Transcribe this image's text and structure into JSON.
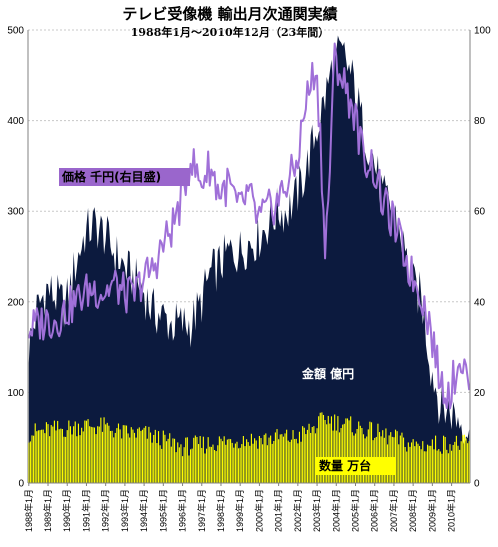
{
  "chart_data": {
    "type": "area",
    "title": "テレビ受像機 輸出月次通関実績",
    "subtitle": "1988年1月～2010年12月（23年間）",
    "x_start": "1988-01",
    "x_end": "2010-12",
    "x_tick_labels": [
      "1988年1月",
      "1989年1月",
      "1990年1月",
      "1991年1月",
      "1992年1月",
      "1993年1月",
      "1994年1月",
      "1995年1月",
      "1996年1月",
      "1997年1月",
      "1998年1月",
      "1999年1月",
      "2000年1月",
      "2001年1月",
      "2002年1月",
      "2003年1月",
      "2004年1月",
      "2005年1月",
      "2006年1月",
      "2007年1月",
      "2008年1月",
      "2009年1月",
      "2010年1月"
    ],
    "y_left": {
      "ylim": [
        0,
        500
      ],
      "ticks": [
        0,
        100,
        200,
        300,
        400,
        500
      ]
    },
    "y_right": {
      "ylim": [
        0,
        100
      ],
      "ticks": [
        0,
        20,
        40,
        60,
        80,
        100
      ]
    },
    "grid": true,
    "labels": {
      "price": "価格  千円(右目盛)",
      "amount": "金額  億円",
      "quantity": "数量  万台"
    },
    "series": [
      {
        "name": "金額 億円",
        "kind": "area",
        "axis": "left",
        "color": "#0c1a3e",
        "anchors": [
          [
            "1988-01",
            150
          ],
          [
            "1988-06",
            190
          ],
          [
            "1988-12",
            215
          ],
          [
            "1989-06",
            205
          ],
          [
            "1989-12",
            195
          ],
          [
            "1990-06",
            240
          ],
          [
            "1990-12",
            275
          ],
          [
            "1991-06",
            285
          ],
          [
            "1991-12",
            275
          ],
          [
            "1992-06",
            255
          ],
          [
            "1992-12",
            240
          ],
          [
            "1993-06",
            225
          ],
          [
            "1993-12",
            215
          ],
          [
            "1994-06",
            190
          ],
          [
            "1994-12",
            185
          ],
          [
            "1995-06",
            175
          ],
          [
            "1995-12",
            175
          ],
          [
            "1996-06",
            175
          ],
          [
            "1996-12",
            195
          ],
          [
            "1997-06",
            230
          ],
          [
            "1997-12",
            240
          ],
          [
            "1998-06",
            255
          ],
          [
            "1998-12",
            255
          ],
          [
            "1999-06",
            265
          ],
          [
            "1999-12",
            270
          ],
          [
            "2000-06",
            285
          ],
          [
            "2000-12",
            300
          ],
          [
            "2001-06",
            300
          ],
          [
            "2001-12",
            315
          ],
          [
            "2002-06",
            345
          ],
          [
            "2002-12",
            385
          ],
          [
            "2003-06",
            425
          ],
          [
            "2003-12",
            470
          ],
          [
            "2004-06",
            470
          ],
          [
            "2004-12",
            440
          ],
          [
            "2005-06",
            390
          ],
          [
            "2005-12",
            360
          ],
          [
            "2006-06",
            315
          ],
          [
            "2006-12",
            305
          ],
          [
            "2007-06",
            270
          ],
          [
            "2007-12",
            220
          ],
          [
            "2008-06",
            205
          ],
          [
            "2008-12",
            130
          ],
          [
            "2009-06",
            85
          ],
          [
            "2009-12",
            80
          ],
          [
            "2010-06",
            70
          ],
          [
            "2010-12",
            60
          ]
        ]
      },
      {
        "name": "数量 万台",
        "kind": "bar",
        "axis": "left",
        "color": "#ffff00",
        "anchors": [
          [
            "1988-01",
            55
          ],
          [
            "1988-12",
            58
          ],
          [
            "1989-12",
            60
          ],
          [
            "1990-12",
            64
          ],
          [
            "1991-12",
            62
          ],
          [
            "1992-12",
            55
          ],
          [
            "1993-12",
            55
          ],
          [
            "1994-12",
            48
          ],
          [
            "1995-12",
            40
          ],
          [
            "1996-12",
            42
          ],
          [
            "1997-12",
            45
          ],
          [
            "1998-12",
            48
          ],
          [
            "1999-12",
            48
          ],
          [
            "2000-12",
            50
          ],
          [
            "2001-12",
            50
          ],
          [
            "2002-12",
            62
          ],
          [
            "2003-06",
            72
          ],
          [
            "2003-12",
            68
          ],
          [
            "2004-12",
            62
          ],
          [
            "2005-12",
            56
          ],
          [
            "2006-12",
            50
          ],
          [
            "2007-12",
            42
          ],
          [
            "2008-12",
            42
          ],
          [
            "2009-12",
            44
          ],
          [
            "2010-12",
            42
          ]
        ]
      },
      {
        "name": "価格 千円",
        "kind": "line",
        "axis": "right",
        "color": "#a070d8",
        "anchors": [
          [
            "1988-01",
            34
          ],
          [
            "1988-12",
            36
          ],
          [
            "1989-06",
            36
          ],
          [
            "1989-12",
            38
          ],
          [
            "1990-06",
            40
          ],
          [
            "1990-12",
            42
          ],
          [
            "1991-06",
            43
          ],
          [
            "1991-12",
            42
          ],
          [
            "1992-06",
            44
          ],
          [
            "1992-12",
            42
          ],
          [
            "1993-06",
            41
          ],
          [
            "1993-12",
            45
          ],
          [
            "1994-06",
            47
          ],
          [
            "1994-12",
            52
          ],
          [
            "1995-06",
            56
          ],
          [
            "1995-12",
            62
          ],
          [
            "1996-06",
            72
          ],
          [
            "1996-12",
            66
          ],
          [
            "1997-06",
            70
          ],
          [
            "1997-12",
            64
          ],
          [
            "1998-06",
            66
          ],
          [
            "1998-12",
            60
          ],
          [
            "1999-06",
            64
          ],
          [
            "1999-12",
            58
          ],
          [
            "2000-06",
            60
          ],
          [
            "2000-12",
            62
          ],
          [
            "2001-06",
            66
          ],
          [
            "2001-12",
            70
          ],
          [
            "2002-06",
            84
          ],
          [
            "2002-12",
            92
          ],
          [
            "2003-03",
            78
          ],
          [
            "2003-06",
            50
          ],
          [
            "2003-09",
            70
          ],
          [
            "2003-12",
            94
          ],
          [
            "2004-06",
            88
          ],
          [
            "2004-12",
            82
          ],
          [
            "2005-06",
            72
          ],
          [
            "2005-12",
            70
          ],
          [
            "2006-06",
            62
          ],
          [
            "2006-12",
            58
          ],
          [
            "2007-06",
            52
          ],
          [
            "2007-12",
            46
          ],
          [
            "2008-06",
            42
          ],
          [
            "2008-12",
            34
          ],
          [
            "2009-06",
            22
          ],
          [
            "2009-12",
            20
          ],
          [
            "2010-03",
            24
          ],
          [
            "2010-06",
            28
          ],
          [
            "2010-12",
            22
          ]
        ]
      }
    ]
  }
}
